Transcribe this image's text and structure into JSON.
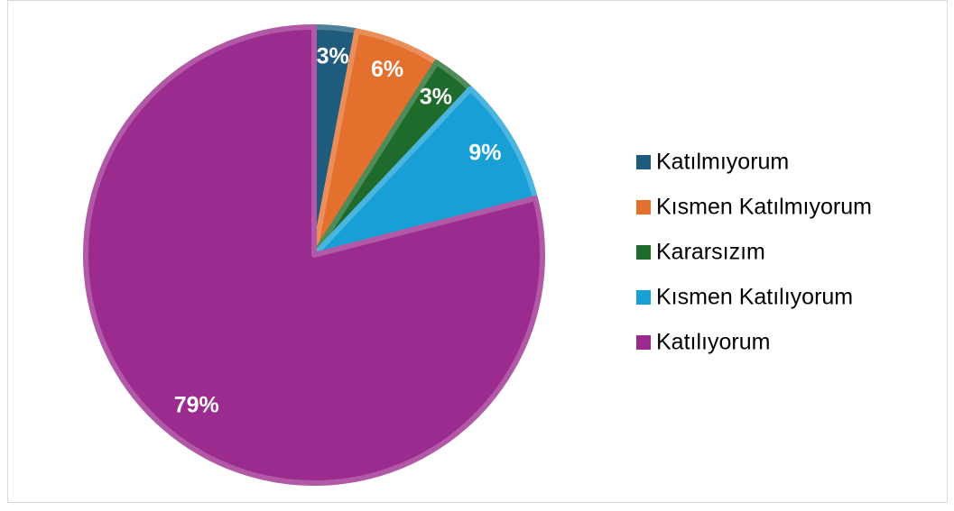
{
  "chart_data": {
    "type": "pie",
    "categories": [
      "Katılmıyorum",
      "Kısmen Katılmıyorum",
      "Kararsızım",
      "Kısmen Katılıyorum",
      "Katılıyorum"
    ],
    "values": [
      3,
      6,
      3,
      9,
      79
    ],
    "value_labels": [
      "3%",
      "6%",
      "3%",
      "9%",
      "79%"
    ],
    "colors": [
      "#1f5b7c",
      "#e4702e",
      "#1f6b2c",
      "#18a0d6",
      "#9c2b8f"
    ],
    "legend": "right"
  }
}
